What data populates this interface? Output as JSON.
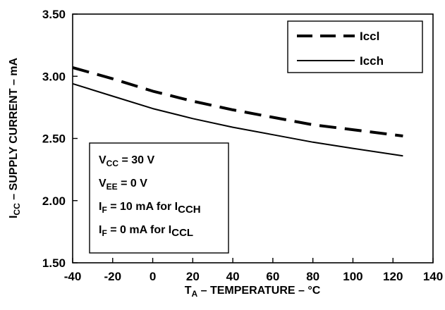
{
  "chart_data": {
    "type": "line",
    "title": "",
    "xlabel": {
      "main": "T",
      "sub": "A",
      "rest": " – TEMPERATURE – °C"
    },
    "ylabel": {
      "main": "I",
      "sub": "CC",
      "rest": " – SUPPLY CURRENT – mA"
    },
    "xlim": [
      -40,
      140
    ],
    "ylim": [
      1.5,
      3.5
    ],
    "x_ticks": [
      -40,
      -20,
      0,
      20,
      40,
      60,
      80,
      100,
      120,
      140
    ],
    "y_ticks": [
      1.5,
      2.0,
      2.5,
      3.0,
      3.5
    ],
    "x_tick_labels": [
      "-40",
      "-20",
      "0",
      "20",
      "40",
      "60",
      "80",
      "100",
      "120",
      "140"
    ],
    "y_tick_labels": [
      "1.50",
      "2.00",
      "2.50",
      "3.00",
      "3.50"
    ],
    "grid": false,
    "legend_position": "top-right",
    "series": [
      {
        "name": "Iccl",
        "style": "dashed",
        "x": [
          -40,
          -20,
          0,
          20,
          40,
          60,
          80,
          100,
          125
        ],
        "y": [
          3.07,
          2.98,
          2.88,
          2.8,
          2.73,
          2.67,
          2.61,
          2.57,
          2.52
        ]
      },
      {
        "name": "Icch",
        "style": "solid",
        "x": [
          -40,
          -20,
          0,
          20,
          40,
          60,
          80,
          100,
          125
        ],
        "y": [
          2.94,
          2.84,
          2.74,
          2.66,
          2.59,
          2.53,
          2.47,
          2.42,
          2.36
        ]
      }
    ],
    "conditions": [
      {
        "main": "V",
        "sub": "CC",
        "rest": " = 30 V",
        "sub2": ""
      },
      {
        "main": "V",
        "sub": "EE",
        "rest": " = 0 V",
        "sub2": ""
      },
      {
        "main": "I",
        "sub": "F",
        "rest": " = 10 mA for I",
        "sub2": "CCH"
      },
      {
        "main": "I",
        "sub": "F",
        "rest": " = 0 mA for I",
        "sub2": "CCL"
      }
    ]
  }
}
